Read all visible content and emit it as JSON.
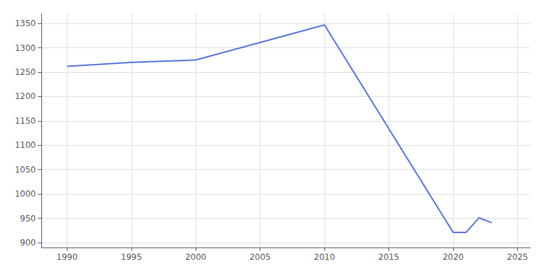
{
  "chart_data": {
    "type": "line",
    "x": [
      1990,
      1995,
      2000,
      2010,
      2020,
      2021,
      2022,
      2023
    ],
    "values": [
      1262,
      1270,
      1275,
      1347,
      921,
      921,
      951,
      941
    ],
    "xlim": [
      1988,
      2026
    ],
    "ylim": [
      890,
      1370
    ],
    "xticks": [
      1990,
      1995,
      2000,
      2005,
      2010,
      2015,
      2020,
      2025
    ],
    "yticks": [
      900,
      950,
      1000,
      1050,
      1100,
      1150,
      1200,
      1250,
      1300,
      1350
    ],
    "grid": true
  }
}
